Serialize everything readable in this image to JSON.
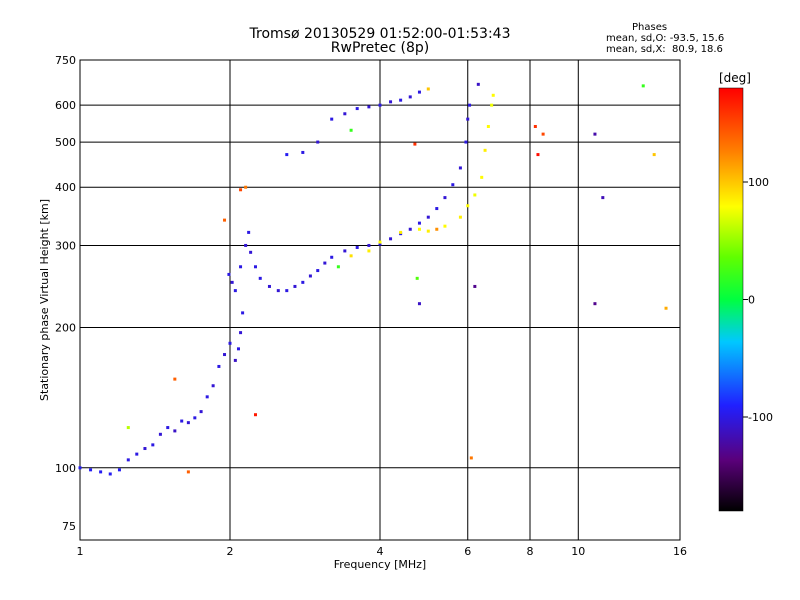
{
  "header": {
    "title_line1": "Tromsø 20130529 01:52:00-01:53:43",
    "title_line2": "RwPretec (8p)",
    "phases_title": "Phases",
    "phases_o": "mean, sd,O: -93.5, 15.6",
    "phases_x": "mean, sd,X:  80.9, 18.6"
  },
  "colorbar": {
    "unit_label": "[deg]",
    "ticks": [
      "100",
      "0",
      "-100"
    ],
    "tick_values": [
      100,
      0,
      -100
    ],
    "range": [
      -180,
      180
    ]
  },
  "chart_data": {
    "type": "scatter",
    "title": "Tromsø 20130529 01:52:00-01:53:43",
    "subtitle": "RwPretec (8p)",
    "xlabel": "Frequency [MHz]",
    "ylabel": "Stationary phase Virtual Height [km]",
    "x_scale": "log",
    "y_scale": "log",
    "xlim": [
      1,
      16
    ],
    "ylim": [
      70,
      750
    ],
    "x_ticks": [
      1,
      2,
      4,
      6,
      8,
      10,
      16
    ],
    "x_tick_labels": [
      "1",
      "2",
      "4",
      "6",
      "8",
      "10",
      "16"
    ],
    "y_ticks": [
      75,
      100,
      200,
      300,
      400,
      500,
      600,
      750
    ],
    "y_tick_labels": [
      "75",
      "100",
      "200",
      "300",
      "400",
      "500",
      "600",
      "750"
    ],
    "grid": true,
    "series": [
      {
        "points": [
          [
            1.0,
            100,
            -95
          ],
          [
            1.05,
            99,
            -95
          ],
          [
            1.1,
            98,
            -95
          ],
          [
            1.15,
            97,
            -95
          ],
          [
            1.2,
            99,
            -95
          ],
          [
            1.25,
            104,
            -100
          ],
          [
            1.3,
            107,
            -100
          ],
          [
            1.35,
            110,
            -105
          ],
          [
            1.4,
            112,
            -100
          ],
          [
            1.45,
            118,
            -105
          ],
          [
            1.5,
            122,
            -100
          ],
          [
            1.55,
            120,
            -110
          ],
          [
            1.6,
            126,
            -100
          ],
          [
            1.65,
            125,
            -105
          ],
          [
            1.7,
            128,
            -100
          ],
          [
            1.75,
            132,
            -105
          ],
          [
            1.8,
            142,
            -100
          ],
          [
            1.85,
            150,
            -105
          ],
          [
            1.9,
            165,
            -100
          ],
          [
            1.95,
            175,
            -105
          ],
          [
            2.0,
            185,
            -100
          ],
          [
            2.05,
            170,
            -110
          ],
          [
            2.08,
            180,
            -100
          ],
          [
            2.1,
            195,
            -105
          ],
          [
            2.12,
            215,
            -100
          ],
          [
            1.99,
            260,
            -100
          ],
          [
            2.02,
            250,
            -105
          ],
          [
            2.05,
            240,
            -100
          ],
          [
            2.1,
            270,
            -100
          ],
          [
            2.15,
            300,
            -105
          ],
          [
            2.18,
            320,
            -100
          ],
          [
            2.2,
            290,
            -105
          ],
          [
            2.25,
            270,
            -100
          ],
          [
            2.3,
            255,
            -100
          ],
          [
            2.4,
            245,
            -105
          ],
          [
            2.5,
            240,
            -105
          ],
          [
            2.6,
            240,
            -100
          ],
          [
            2.7,
            245,
            -105
          ],
          [
            2.8,
            250,
            -100
          ],
          [
            2.9,
            258,
            -105
          ],
          [
            3.0,
            265,
            -100
          ],
          [
            3.1,
            275,
            -105
          ],
          [
            3.2,
            283,
            -100
          ],
          [
            3.4,
            292,
            -105
          ],
          [
            3.6,
            297,
            -100
          ],
          [
            3.8,
            300,
            -105
          ],
          [
            4.0,
            302,
            -100
          ],
          [
            4.2,
            310,
            -105
          ],
          [
            4.4,
            318,
            -100
          ],
          [
            4.6,
            325,
            -105
          ],
          [
            4.8,
            335,
            -100
          ],
          [
            5.0,
            345,
            -105
          ],
          [
            5.2,
            360,
            -100
          ],
          [
            5.4,
            380,
            -105
          ],
          [
            5.6,
            405,
            -100
          ],
          [
            5.8,
            440,
            -105
          ],
          [
            5.95,
            500,
            -100
          ],
          [
            6.0,
            560,
            -105
          ],
          [
            6.05,
            600,
            -100
          ],
          [
            2.6,
            470,
            -95
          ],
          [
            2.8,
            475,
            -100
          ],
          [
            3.0,
            500,
            -105
          ],
          [
            3.2,
            560,
            -100
          ],
          [
            3.4,
            575,
            -105
          ],
          [
            3.6,
            590,
            -100
          ],
          [
            3.8,
            595,
            -105
          ],
          [
            4.0,
            600,
            -100
          ],
          [
            4.2,
            610,
            -105
          ],
          [
            4.4,
            615,
            -100
          ],
          [
            4.6,
            625,
            -105
          ],
          [
            4.8,
            640,
            -100
          ]
        ]
      },
      {
        "points": [
          [
            3.5,
            285,
            90
          ],
          [
            3.8,
            292,
            85
          ],
          [
            4.0,
            305,
            80
          ],
          [
            4.4,
            320,
            85
          ],
          [
            4.8,
            325,
            80
          ],
          [
            5.0,
            322,
            85
          ],
          [
            5.4,
            330,
            80
          ],
          [
            5.8,
            345,
            85
          ],
          [
            6.0,
            365,
            80
          ],
          [
            6.2,
            385,
            75
          ],
          [
            6.4,
            420,
            80
          ],
          [
            6.5,
            480,
            85
          ],
          [
            6.6,
            540,
            80
          ],
          [
            6.7,
            600,
            75
          ],
          [
            6.75,
            630,
            80
          ],
          [
            5.0,
            650,
            100
          ]
        ]
      },
      {
        "points": [
          [
            1.25,
            122,
            60
          ],
          [
            1.55,
            155,
            140
          ],
          [
            1.65,
            98,
            140
          ],
          [
            1.95,
            340,
            140
          ],
          [
            2.1,
            395,
            150
          ],
          [
            2.15,
            400,
            130
          ],
          [
            2.25,
            130,
            170
          ],
          [
            3.3,
            270,
            20
          ],
          [
            3.5,
            530,
            20
          ],
          [
            4.7,
            495,
            160
          ],
          [
            4.75,
            255,
            30
          ],
          [
            4.8,
            225,
            -110
          ],
          [
            5.2,
            325,
            120
          ],
          [
            6.1,
            105,
            130
          ],
          [
            6.2,
            245,
            -130
          ],
          [
            6.3,
            665,
            -110
          ],
          [
            8.2,
            540,
            160
          ],
          [
            8.3,
            470,
            175
          ],
          [
            8.5,
            520,
            150
          ],
          [
            10.8,
            520,
            -120
          ],
          [
            11.2,
            380,
            -115
          ],
          [
            10.8,
            225,
            -130
          ],
          [
            13.5,
            660,
            20
          ],
          [
            14.2,
            470,
            100
          ],
          [
            15.0,
            220,
            110
          ]
        ]
      }
    ]
  }
}
